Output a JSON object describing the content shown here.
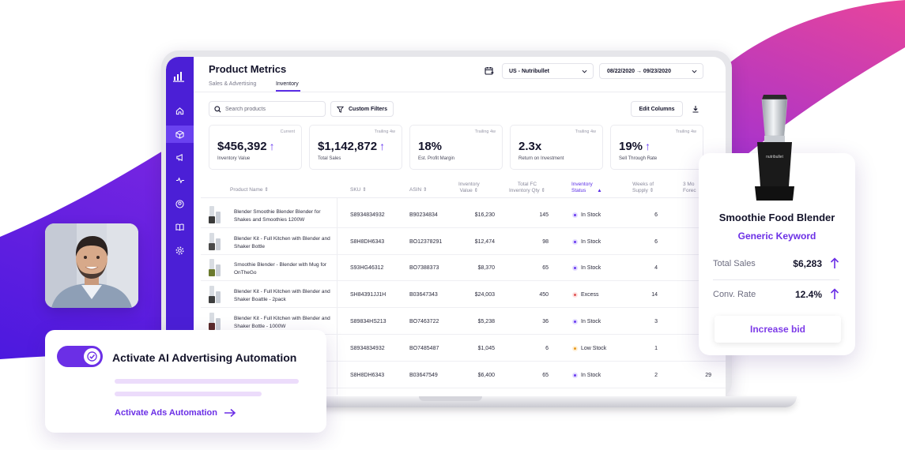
{
  "app": {
    "title": "Product Metrics",
    "tabs": [
      {
        "label": "Sales & Advertising"
      },
      {
        "label": "Inventory"
      }
    ],
    "store_select": "US - Nutribullet",
    "date_range": "08/22/2020 → 09/23/2020"
  },
  "toolbar": {
    "search_placeholder": "Search products",
    "filters_label": "Custom Filters",
    "edit_columns_label": "Edit Columns"
  },
  "kpis": [
    {
      "period": "Current",
      "value": "$456,392",
      "label": "Inventory Value",
      "trend": "up"
    },
    {
      "period": "Trailing 4w",
      "value": "$1,142,872",
      "label": "Total Sales",
      "trend": "up"
    },
    {
      "period": "Trailing 4w",
      "value": "18%",
      "label": "Est. Profit Margin",
      "trend": "none"
    },
    {
      "period": "Trailing 4w",
      "value": "2.3x",
      "label": "Return on Investment",
      "trend": "none"
    },
    {
      "period": "Trailing 4w",
      "value": "19%",
      "label": "Sell Through Rate",
      "trend": "up"
    }
  ],
  "table": {
    "columns": {
      "name": "Product Name",
      "sku": "SKU",
      "asin": "ASIN",
      "value_l1": "Inventory",
      "value_l2": "Value",
      "qty_l1": "Total FC",
      "qty_l2": "Inventory Qty",
      "status_l1": "Inventory",
      "status_l2": "Status",
      "weeks_l1": "Weeks of",
      "weeks_l2": "Supply",
      "extra_l1": "3 Mo",
      "extra_l2": "Forec"
    },
    "rows": [
      {
        "name": "Blender Smoothie Blender Blender for Shakes and Smoothies 1200W",
        "sku": "S8934834932",
        "asin": "B90234834",
        "value": "$16,230",
        "qty": "145",
        "status": "In Stock",
        "status_type": "instock",
        "weeks": "6",
        "extra": ""
      },
      {
        "name": "Blender Kit - Full Kitchen with Blender and Shaker Bottle",
        "sku": "S8H8DH6343",
        "asin": "BO12378291",
        "value": "$12,474",
        "qty": "98",
        "status": "In Stock",
        "status_type": "instock",
        "weeks": "6",
        "extra": ""
      },
      {
        "name": "Smoothie Blender - Blender with Mug for OnTheGo",
        "sku": "S93HG46312",
        "asin": "BO7388373",
        "value": "$8,370",
        "qty": "65",
        "status": "In Stock",
        "status_type": "instock",
        "weeks": "4",
        "extra": ""
      },
      {
        "name": "Blender Kit - Full Kitchen with Blender and Shaker Boattle - 2pack",
        "sku": "SH84391JJ1H",
        "asin": "B03647343",
        "value": "$24,003",
        "qty": "450",
        "status": "Excess",
        "status_type": "excess",
        "weeks": "14",
        "extra": ""
      },
      {
        "name": "Blender Kit - Full Kitchen with Blender and Shaker Bottle - 1000W",
        "sku": "S89834HS213",
        "asin": "BO7463722",
        "value": "$5,238",
        "qty": "36",
        "status": "In Stock",
        "status_type": "instock",
        "weeks": "3",
        "extra": ""
      },
      {
        "name": "",
        "sku": "S8934834932",
        "asin": "BO7485487",
        "value": "$1,045",
        "qty": "6",
        "status": "Low Stock",
        "status_type": "low",
        "weeks": "1",
        "extra": ""
      },
      {
        "name": "",
        "sku": "S8H8DH6343",
        "asin": "B03647549",
        "value": "$6,400",
        "qty": "65",
        "status": "In Stock",
        "status_type": "instock",
        "weeks": "2",
        "extra": "29"
      }
    ]
  },
  "automation_card": {
    "title": "Activate AI Advertising Automation",
    "link": "Activate Ads Automation",
    "toggle_on": true
  },
  "product_card": {
    "name": "Smoothie Food Blender",
    "keyword": "Generic Keyword",
    "total_sales_label": "Total Sales",
    "total_sales_value": "$6,283",
    "conv_rate_label": "Conv. Rate",
    "conv_rate_value": "12.4%",
    "button": "Increase bid",
    "brand_on_product": "nutribullet"
  },
  "colors": {
    "accent": "#5b2ee6",
    "sidebar": "#4b1fd6",
    "wave_start": "#5a1fe0",
    "wave_end": "#e0409f"
  }
}
